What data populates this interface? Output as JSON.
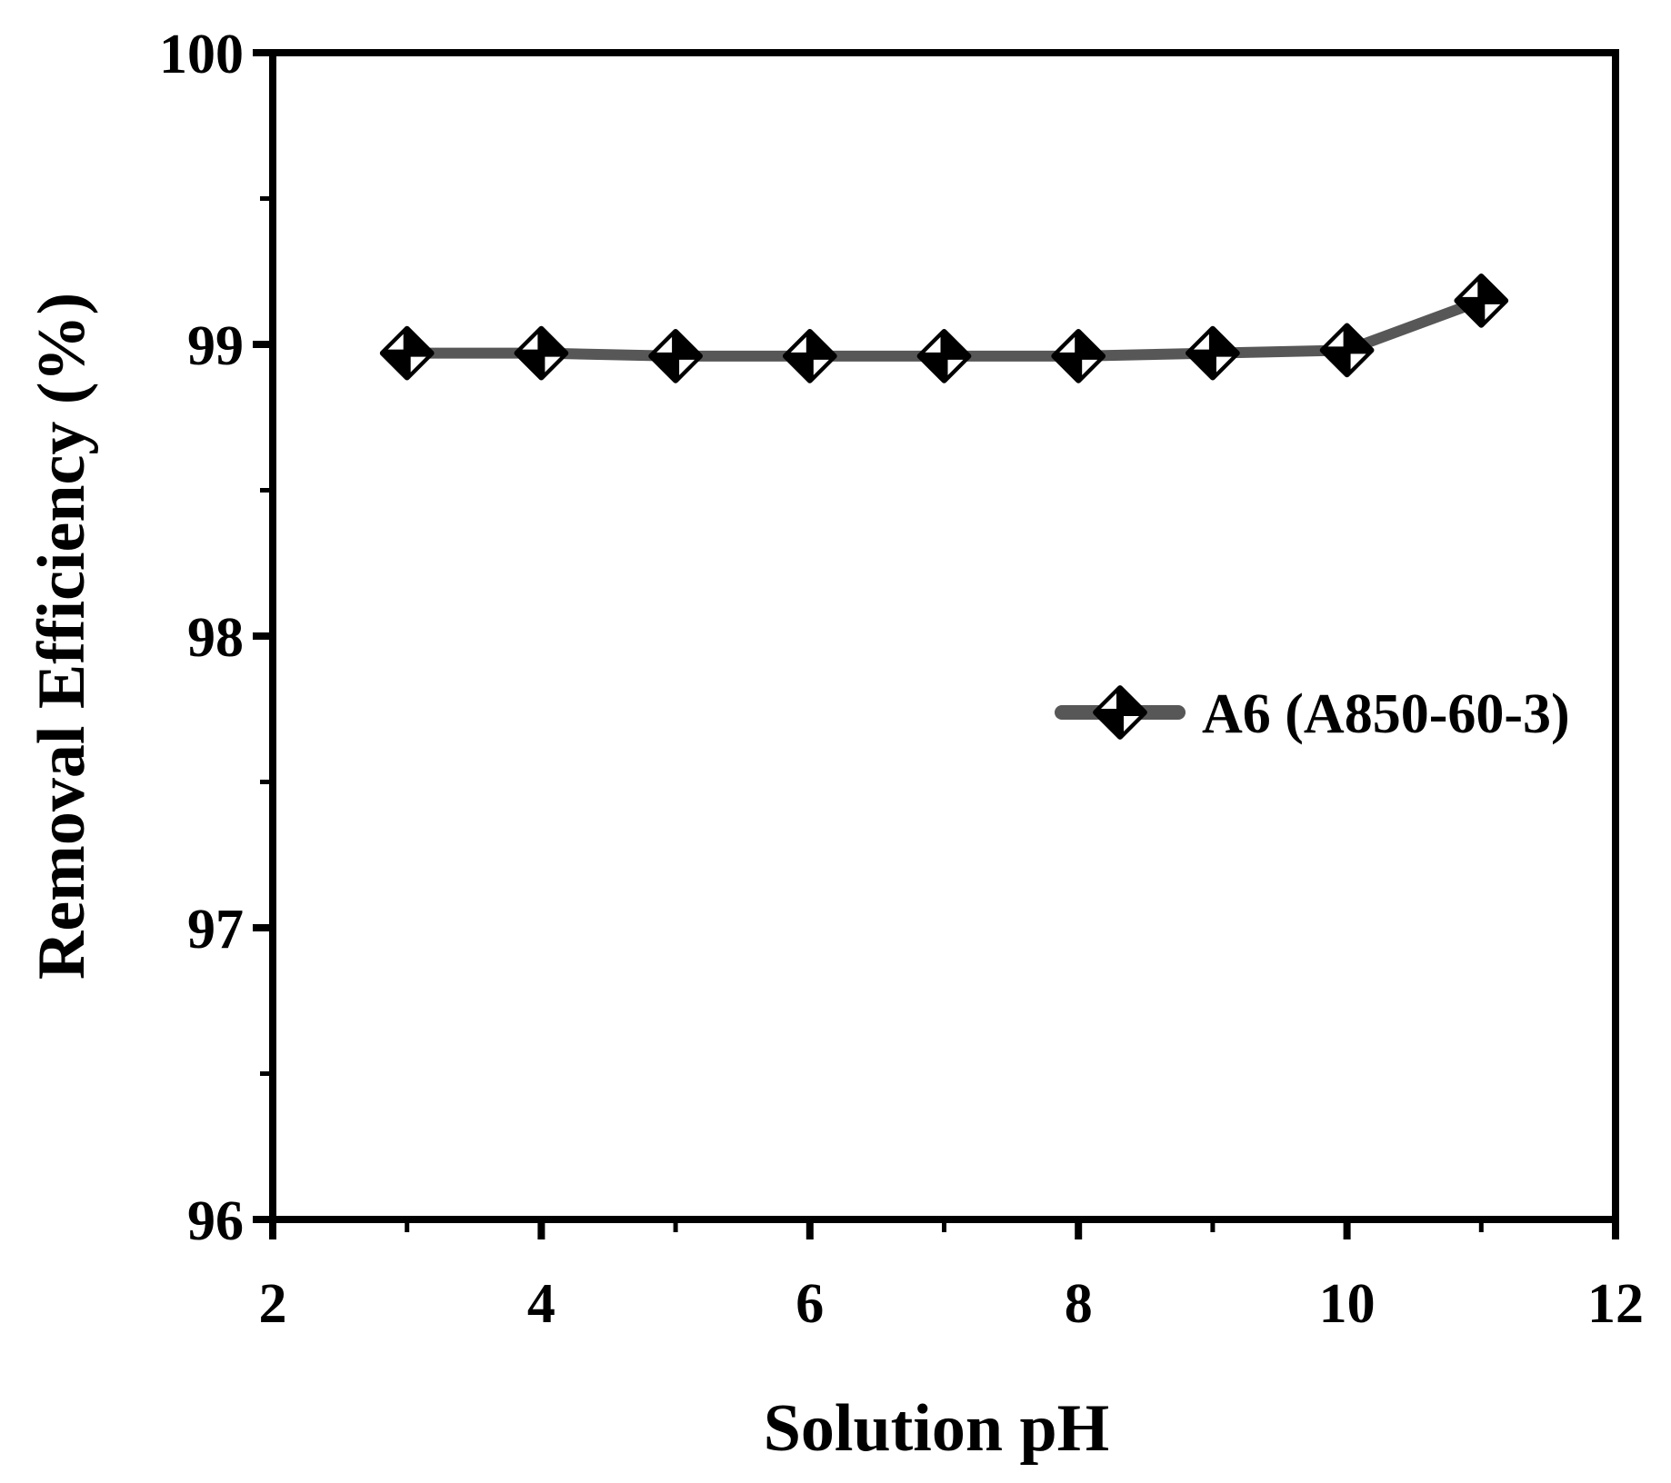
{
  "chart_data": {
    "type": "line",
    "title": "",
    "xlabel": "Solution pH",
    "ylabel": "Removal Efficiency (%)",
    "xlim": [
      2,
      12
    ],
    "ylim": [
      96,
      100
    ],
    "x_major_ticks": [
      2,
      4,
      6,
      8,
      10,
      12
    ],
    "x_minor_ticks": [
      3,
      5,
      7,
      9,
      11
    ],
    "y_major_ticks": [
      96,
      97,
      98,
      99,
      100
    ],
    "y_minor_ticks": [
      96.5,
      97.5,
      98.5,
      99.5
    ],
    "grid": false,
    "legend_position": "inside-middle-right",
    "series": [
      {
        "name": "A6 (A850-60-3)",
        "marker": "black-diamond-white-nw-se-quadrants",
        "x": [
          3,
          4,
          5,
          6,
          7,
          8,
          9,
          10,
          11
        ],
        "y": [
          98.97,
          98.97,
          98.96,
          98.96,
          98.96,
          98.96,
          98.97,
          98.98,
          99.15
        ]
      }
    ]
  },
  "colors": {
    "background": "#ffffff",
    "axis": "#000000",
    "text": "#000000",
    "line": "#575757",
    "marker_fill": "#000000",
    "marker_inner": "#ffffff"
  }
}
